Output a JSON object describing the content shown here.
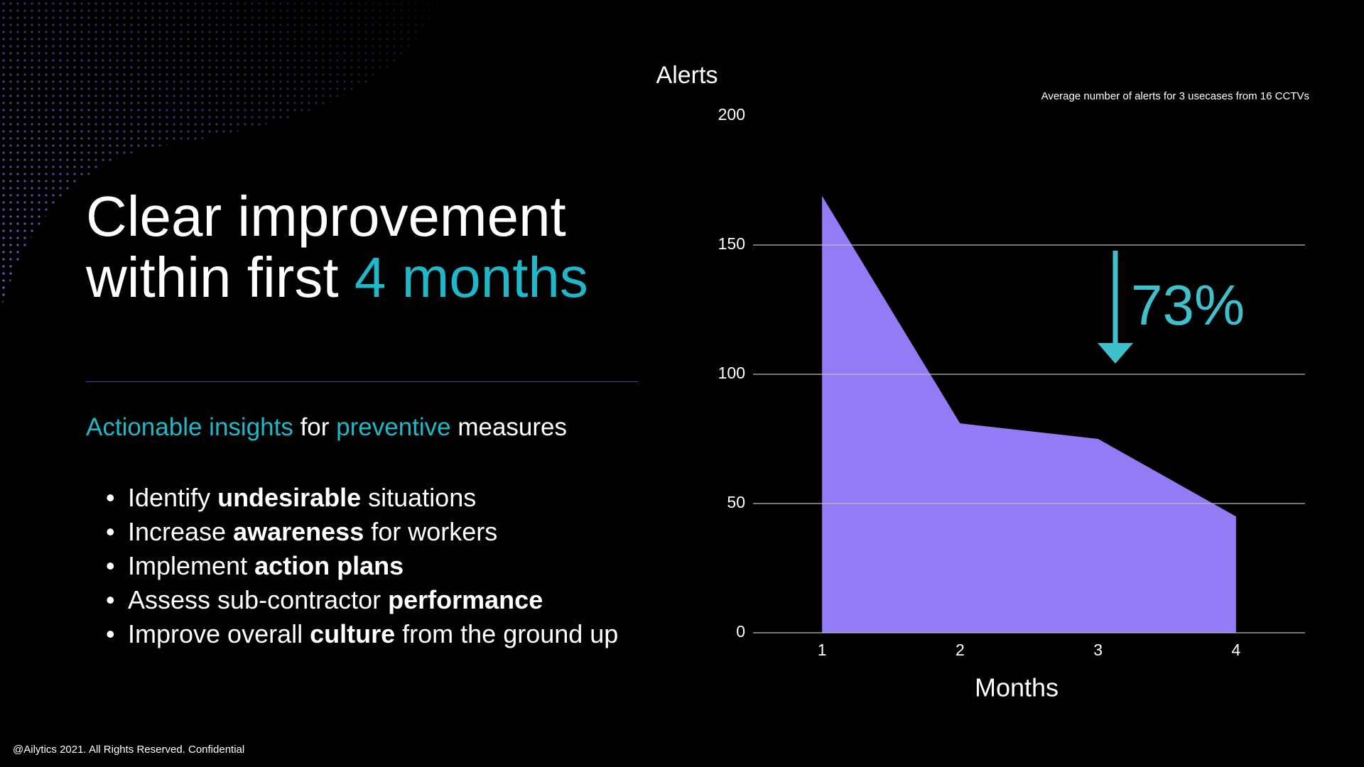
{
  "title_lines": [
    [
      {
        "text": "Clear improvement",
        "highlight": false
      }
    ],
    [
      {
        "text": "within first ",
        "highlight": false
      },
      {
        "text": "4 months",
        "highlight": true
      }
    ]
  ],
  "lead": [
    {
      "text": "Actionable insights",
      "highlight": true
    },
    {
      "text": " for ",
      "highlight": false
    },
    {
      "text": "preventive",
      "highlight": true
    },
    {
      "text": " measures",
      "highlight": false
    }
  ],
  "bullets": [
    [
      {
        "text": "Identify ",
        "bold": false
      },
      {
        "text": "undesirable",
        "bold": true
      },
      {
        "text": " situations",
        "bold": false
      }
    ],
    [
      {
        "text": "Increase ",
        "bold": false
      },
      {
        "text": "awareness",
        "bold": true
      },
      {
        "text": " for workers",
        "bold": false
      }
    ],
    [
      {
        "text": "Implement ",
        "bold": false
      },
      {
        "text": "action plans",
        "bold": true
      }
    ],
    [
      {
        "text": "Assess sub-contractor ",
        "bold": false
      },
      {
        "text": "performance",
        "bold": true
      }
    ],
    [
      {
        "text": "Improve overall ",
        "bold": false
      },
      {
        "text": "culture",
        "bold": true
      },
      {
        "text": " from the ground up",
        "bold": false
      }
    ]
  ],
  "footer": "@Ailytics 2021. All Rights Reserved. Confidential",
  "chart_data": {
    "type": "area",
    "y_label": "Alerts",
    "x_label": "Months",
    "subtitle": "Average number of alerts for 3 usecases from 16 CCTVs",
    "x": [
      1,
      2,
      3,
      4
    ],
    "values": [
      169,
      81,
      75,
      45
    ],
    "color": "#937bf5",
    "xlim": [
      0.5,
      4.5
    ],
    "xticks": [
      1,
      2,
      3,
      4
    ],
    "ylim": [
      0,
      200
    ],
    "yticks": [
      0,
      50,
      100,
      150,
      200
    ],
    "grid": true,
    "annotation": {
      "text": "73%",
      "color": "#3fc1cc"
    }
  }
}
